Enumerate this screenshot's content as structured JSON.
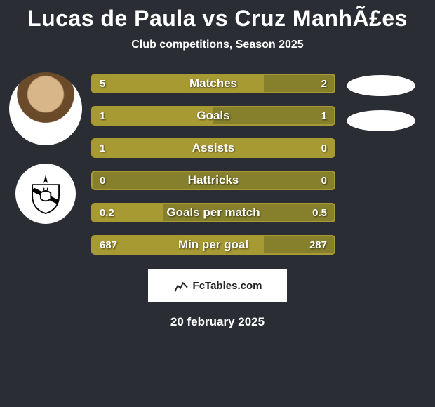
{
  "title": "Lucas de Paula vs Cruz ManhÃ£es",
  "subtitle": "Club competitions, Season 2025",
  "date": "20 february 2025",
  "footer_label": "FcTables.com",
  "colors": {
    "background": "#2a2e34",
    "bar_outline": "#a89a33",
    "bar_fill_left": "#a89a33",
    "bar_bg": "#86802d",
    "text": "#ffffff"
  },
  "player_left": {
    "name": "Lucas de Paula"
  },
  "player_right": {
    "name": "Cruz ManhÃ£es"
  },
  "stats": [
    {
      "label": "Matches",
      "left_val": "5",
      "right_val": "2",
      "left_pct": 71,
      "right_pct": 29
    },
    {
      "label": "Goals",
      "left_val": "1",
      "right_val": "1",
      "left_pct": 50,
      "right_pct": 50
    },
    {
      "label": "Assists",
      "left_val": "1",
      "right_val": "0",
      "left_pct": 100,
      "right_pct": 0
    },
    {
      "label": "Hattricks",
      "left_val": "0",
      "right_val": "0",
      "left_pct": 0,
      "right_pct": 0
    },
    {
      "label": "Goals per match",
      "left_val": "0.2",
      "right_val": "0.5",
      "left_pct": 29,
      "right_pct": 71
    },
    {
      "label": "Min per goal",
      "left_val": "687",
      "right_val": "287",
      "left_pct": 71,
      "right_pct": 29
    }
  ],
  "ellipses_count": 2
}
